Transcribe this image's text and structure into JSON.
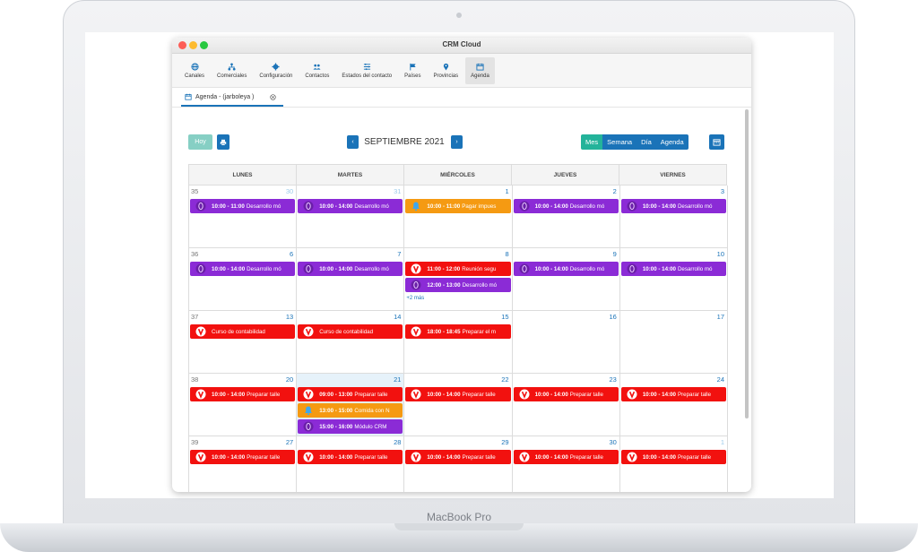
{
  "device": {
    "brand_label": "MacBook Pro"
  },
  "window": {
    "title": "CRM Cloud"
  },
  "toolbar": {
    "items": [
      {
        "label": "Canales",
        "icon": "globe-icon"
      },
      {
        "label": "Comerciales",
        "icon": "org-chart-icon"
      },
      {
        "label": "Configuración",
        "icon": "gear-icon"
      },
      {
        "label": "Contactos",
        "icon": "users-icon"
      },
      {
        "label": "Estados del contacto",
        "icon": "list-settings-icon"
      },
      {
        "label": "Países",
        "icon": "flag-icon"
      },
      {
        "label": "Provincias",
        "icon": "map-pin-icon"
      },
      {
        "label": "Agenda",
        "icon": "calendar-icon"
      }
    ]
  },
  "tab": {
    "label": "Agenda - (jarboleya )"
  },
  "calendar": {
    "today_label": "Hoy",
    "month_label": "SEPTIEMBRE 2021",
    "prev_label": "‹",
    "next_label": "›",
    "views": [
      "Mes",
      "Semana",
      "Día",
      "Agenda"
    ],
    "active_view": "Mes",
    "weekday_headers": [
      "LUNES",
      "MARTES",
      "MIÉRCOLES",
      "JUEVES",
      "VIERNES"
    ],
    "weeks": [
      {
        "week_number": "35",
        "days": [
          {
            "num": "30",
            "other": true,
            "events": [
              {
                "time": "10:00 - 11:00",
                "title": "Desarrollo mó",
                "color": "purple"
              }
            ]
          },
          {
            "num": "31",
            "other": true,
            "events": [
              {
                "time": "10:00 - 14:00",
                "title": "Desarrollo mó",
                "color": "purple"
              }
            ]
          },
          {
            "num": "1",
            "events": [
              {
                "time": "10:00 - 11:00",
                "title": "Pagar impues",
                "color": "orange"
              }
            ]
          },
          {
            "num": "2",
            "events": [
              {
                "time": "10:00 - 14:00",
                "title": "Desarrollo mó",
                "color": "purple"
              }
            ]
          },
          {
            "num": "3",
            "events": [
              {
                "time": "10:00 - 14:00",
                "title": "Desarrollo mó",
                "color": "purple"
              }
            ]
          }
        ]
      },
      {
        "week_number": "36",
        "days": [
          {
            "num": "6",
            "events": [
              {
                "time": "10:00 - 14:00",
                "title": "Desarrollo mó",
                "color": "purple"
              }
            ]
          },
          {
            "num": "7",
            "events": [
              {
                "time": "10:00 - 14:00",
                "title": "Desarrollo mó",
                "color": "purple"
              }
            ]
          },
          {
            "num": "8",
            "events": [
              {
                "time": "11:00 - 12:00",
                "title": "Reunión segu",
                "color": "red"
              },
              {
                "time": "12:00 - 13:00",
                "title": "Desarrollo mó",
                "color": "purple"
              }
            ],
            "more": "+2 más"
          },
          {
            "num": "9",
            "events": [
              {
                "time": "10:00 - 14:00",
                "title": "Desarrollo mó",
                "color": "purple"
              }
            ]
          },
          {
            "num": "10",
            "events": [
              {
                "time": "10:00 - 14:00",
                "title": "Desarrollo mó",
                "color": "purple"
              }
            ]
          }
        ]
      },
      {
        "week_number": "37",
        "days": [
          {
            "num": "13",
            "events": [
              {
                "time": "",
                "title": "Curso de contabilidad",
                "color": "red"
              }
            ]
          },
          {
            "num": "14",
            "events": [
              {
                "time": "",
                "title": "Curso de contabilidad",
                "color": "red"
              }
            ]
          },
          {
            "num": "15",
            "events": [
              {
                "time": "18:00 - 18:45",
                "title": "Preparar el m",
                "color": "red"
              }
            ]
          },
          {
            "num": "16",
            "events": []
          },
          {
            "num": "17",
            "events": []
          }
        ]
      },
      {
        "week_number": "38",
        "days": [
          {
            "num": "20",
            "events": [
              {
                "time": "10:00 - 14:00",
                "title": "Preparar talle",
                "color": "red"
              }
            ]
          },
          {
            "num": "21",
            "today": true,
            "events": [
              {
                "time": "09:00 - 13:00",
                "title": "Preparar talle",
                "color": "red"
              },
              {
                "time": "13:00 - 15:00",
                "title": "Comida con N",
                "color": "orange"
              },
              {
                "time": "15:00 - 16:00",
                "title": "Módulo CRM",
                "color": "purple"
              }
            ]
          },
          {
            "num": "22",
            "events": [
              {
                "time": "10:00 - 14:00",
                "title": "Preparar talle",
                "color": "red"
              }
            ]
          },
          {
            "num": "23",
            "events": [
              {
                "time": "10:00 - 14:00",
                "title": "Preparar talle",
                "color": "red"
              }
            ]
          },
          {
            "num": "24",
            "events": [
              {
                "time": "10:00 - 14:00",
                "title": "Preparar talle",
                "color": "red"
              }
            ]
          }
        ]
      },
      {
        "week_number": "39",
        "days": [
          {
            "num": "27",
            "events": [
              {
                "time": "10:00 - 14:00",
                "title": "Preparar talle",
                "color": "red"
              }
            ]
          },
          {
            "num": "28",
            "events": [
              {
                "time": "10:00 - 14:00",
                "title": "Preparar talle",
                "color": "red"
              }
            ]
          },
          {
            "num": "29",
            "events": [
              {
                "time": "10:00 - 14:00",
                "title": "Preparar talle",
                "color": "red"
              }
            ]
          },
          {
            "num": "30",
            "events": [
              {
                "time": "10:00 - 14:00",
                "title": "Preparar talle",
                "color": "red"
              }
            ]
          },
          {
            "num": "1",
            "other": true,
            "events": [
              {
                "time": "10:00 - 14:00",
                "title": "Preparar talle",
                "color": "red"
              }
            ]
          }
        ]
      }
    ]
  },
  "colors": {
    "primary": "#1a73b8",
    "active_view": "#23b39a",
    "purple": "#8b2bd6",
    "red": "#f2110f",
    "orange": "#f59a12"
  }
}
